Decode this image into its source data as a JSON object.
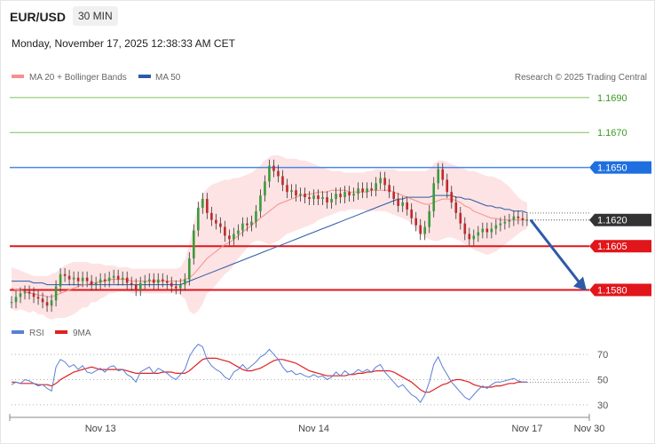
{
  "header": {
    "symbol": "EUR/USD",
    "timeframe": "30 MIN",
    "timestamp": "Monday, November 17, 2025 12:38:33 AM CET"
  },
  "legend": {
    "ma20_label": "MA 20 + Bollinger Bands",
    "ma50_label": "MA 50",
    "credit": "Research © 2025 Trading Central",
    "rsi_label": "RSI",
    "rsi_ma_label": "9MA"
  },
  "colors": {
    "ma20": "#f4908e",
    "ma50": "#2e5aa8",
    "band_fill": "#fde3e3",
    "up": "#3a9b3a",
    "down": "#c0282b",
    "resistance_line": "#4a86e8",
    "support_line": "#e0161b",
    "target_line": "#7fbf5a",
    "last_price": "#333333",
    "rsi": "#5b7fd6",
    "rsi_ma": "#e02020",
    "arrow": "#2e5aa8"
  },
  "chart_data": [
    {
      "type": "candlestick",
      "title": "",
      "y_ticks": [
        {
          "value": 1.169,
          "label": "1.1690",
          "style": "target"
        },
        {
          "value": 1.167,
          "label": "1.1670",
          "style": "target"
        },
        {
          "value": 1.165,
          "label": "1.1650",
          "style": "resistance"
        },
        {
          "value": 1.162,
          "label": "1.1620",
          "style": "last"
        },
        {
          "value": 1.1605,
          "label": "1.1605",
          "style": "support"
        },
        {
          "value": 1.158,
          "label": "1.1580",
          "style": "support"
        }
      ],
      "ylim": [
        1.1565,
        1.1695
      ],
      "x_ticks": [
        {
          "index": 20,
          "label": "Nov 13"
        },
        {
          "index": 68,
          "label": "Nov 14"
        },
        {
          "index": 116,
          "label": "Nov 17"
        },
        {
          "index": 130,
          "label": "Nov 30"
        }
      ],
      "x_count": 131,
      "last_index": 116,
      "forecast": {
        "from_index": 116,
        "from_value": 1.162,
        "to_index": 130,
        "to_value": 1.158
      },
      "closes": [
        1.1573,
        1.1576,
        1.1578,
        1.1579,
        1.1578,
        1.1576,
        1.1575,
        1.1573,
        1.1571,
        1.1574,
        1.1582,
        1.1589,
        1.1588,
        1.1586,
        1.1587,
        1.1585,
        1.1587,
        1.1585,
        1.1583,
        1.1584,
        1.1586,
        1.1585,
        1.1587,
        1.1588,
        1.1586,
        1.1587,
        1.1584,
        1.1583,
        1.158,
        1.1584,
        1.1585,
        1.1586,
        1.1584,
        1.1586,
        1.1585,
        1.1584,
        1.1582,
        1.1581,
        1.1583,
        1.1586,
        1.1598,
        1.1614,
        1.1627,
        1.1632,
        1.1624,
        1.162,
        1.1618,
        1.1616,
        1.1611,
        1.1609,
        1.1612,
        1.1614,
        1.1618,
        1.1617,
        1.1619,
        1.1625,
        1.1634,
        1.1642,
        1.1651,
        1.1648,
        1.1645,
        1.164,
        1.1636,
        1.1637,
        1.1634,
        1.1635,
        1.1633,
        1.1632,
        1.1634,
        1.1632,
        1.1633,
        1.163,
        1.1632,
        1.1635,
        1.1633,
        1.1636,
        1.1634,
        1.1635,
        1.1638,
        1.1636,
        1.1638,
        1.1637,
        1.1641,
        1.1644,
        1.164,
        1.1636,
        1.1632,
        1.1628,
        1.163,
        1.1626,
        1.1621,
        1.1617,
        1.1612,
        1.1616,
        1.1625,
        1.1641,
        1.1649,
        1.1643,
        1.1636,
        1.163,
        1.1624,
        1.1618,
        1.1612,
        1.1609,
        1.1611,
        1.1613,
        1.1615,
        1.1613,
        1.1615,
        1.1617,
        1.1618,
        1.1619,
        1.162,
        1.1622,
        1.1621,
        1.162,
        1.162
      ],
      "ma20": [
        1.1581,
        1.158,
        1.158,
        1.1579,
        1.1578,
        1.1578,
        1.1577,
        1.1577,
        1.1576,
        1.1576,
        1.1577,
        1.1578,
        1.1579,
        1.158,
        1.1581,
        1.1582,
        1.1583,
        1.1583,
        1.1584,
        1.1584,
        1.1585,
        1.1585,
        1.1586,
        1.1586,
        1.1586,
        1.1586,
        1.1586,
        1.1585,
        1.1585,
        1.1585,
        1.1585,
        1.1585,
        1.1585,
        1.1585,
        1.1585,
        1.1585,
        1.1585,
        1.1585,
        1.1585,
        1.1586,
        1.1587,
        1.1589,
        1.1592,
        1.1595,
        1.1598,
        1.16,
        1.1602,
        1.1604,
        1.1606,
        1.1607,
        1.1609,
        1.1611,
        1.1613,
        1.1615,
        1.1617,
        1.1619,
        1.1621,
        1.1623,
        1.1625,
        1.1627,
        1.1629,
        1.163,
        1.1631,
        1.1632,
        1.1633,
        1.1634,
        1.1634,
        1.1635,
        1.1635,
        1.1636,
        1.1636,
        1.1636,
        1.1637,
        1.1637,
        1.1637,
        1.1637,
        1.1636,
        1.1636,
        1.1636,
        1.1636,
        1.1636,
        1.1637,
        1.1637,
        1.1637,
        1.1637,
        1.1637,
        1.1636,
        1.1635,
        1.1634,
        1.1633,
        1.1632,
        1.1631,
        1.163,
        1.1629,
        1.1629,
        1.163,
        1.1631,
        1.1632,
        1.1632,
        1.1632,
        1.1631,
        1.163,
        1.1628,
        1.1627,
        1.1625,
        1.1624,
        1.1623,
        1.1622,
        1.1621,
        1.1621,
        1.162,
        1.162,
        1.162,
        1.162,
        1.162,
        1.162,
        1.162
      ],
      "ma50": [
        1.1585,
        1.1585,
        1.1585,
        1.1585,
        1.1585,
        1.1584,
        1.1584,
        1.1584,
        1.1583,
        1.1583,
        1.1583,
        1.1583,
        1.1583,
        1.1583,
        1.1583,
        1.1583,
        1.1583,
        1.1583,
        1.1583,
        1.1583,
        1.1583,
        1.1583,
        1.1583,
        1.1583,
        1.1583,
        1.1583,
        1.1583,
        1.1583,
        1.1583,
        1.1583,
        1.1583,
        1.1583,
        1.1583,
        1.1583,
        1.1583,
        1.1583,
        1.1583,
        1.1583,
        1.1583,
        1.1584,
        1.1585,
        1.1586,
        1.1587,
        1.1588,
        1.1589,
        1.159,
        1.1591,
        1.1592,
        1.1593,
        1.1594,
        1.1595,
        1.1596,
        1.1597,
        1.1598,
        1.1599,
        1.16,
        1.1601,
        1.1602,
        1.1603,
        1.1604,
        1.1605,
        1.1606,
        1.1607,
        1.1608,
        1.1609,
        1.161,
        1.1611,
        1.1612,
        1.1613,
        1.1614,
        1.1615,
        1.1616,
        1.1617,
        1.1618,
        1.1619,
        1.162,
        1.1621,
        1.1622,
        1.1623,
        1.1624,
        1.1625,
        1.1626,
        1.1627,
        1.1628,
        1.1629,
        1.163,
        1.1631,
        1.1632,
        1.1632,
        1.1633,
        1.1633,
        1.1633,
        1.1633,
        1.1633,
        1.1633,
        1.1634,
        1.1634,
        1.1634,
        1.1634,
        1.1634,
        1.1633,
        1.1633,
        1.1632,
        1.1632,
        1.1631,
        1.163,
        1.1629,
        1.1628,
        1.1628,
        1.1627,
        1.1627,
        1.1626,
        1.1626,
        1.1625,
        1.1625,
        1.1625,
        1.1624
      ],
      "band_upper": [
        1.1593,
        1.1592,
        1.1591,
        1.159,
        1.1589,
        1.1588,
        1.1588,
        1.1588,
        1.1588,
        1.1589,
        1.159,
        1.1592,
        1.1594,
        1.1595,
        1.1596,
        1.1596,
        1.1596,
        1.1596,
        1.1595,
        1.1595,
        1.1595,
        1.1594,
        1.1594,
        1.1594,
        1.1593,
        1.1593,
        1.1593,
        1.1592,
        1.1592,
        1.1592,
        1.1592,
        1.1592,
        1.1592,
        1.1592,
        1.1592,
        1.1592,
        1.1592,
        1.1592,
        1.1593,
        1.1597,
        1.1606,
        1.1618,
        1.1628,
        1.1635,
        1.1638,
        1.164,
        1.1641,
        1.1642,
        1.1643,
        1.1643,
        1.1644,
        1.1644,
        1.1645,
        1.1646,
        1.1647,
        1.1649,
        1.1651,
        1.1654,
        1.1656,
        1.1657,
        1.1657,
        1.1656,
        1.1655,
        1.1655,
        1.1655,
        1.1654,
        1.1654,
        1.1653,
        1.1652,
        1.1651,
        1.165,
        1.1649,
        1.1648,
        1.1648,
        1.1648,
        1.1647,
        1.1647,
        1.1647,
        1.1647,
        1.1647,
        1.1648,
        1.1648,
        1.1649,
        1.1649,
        1.1649,
        1.1649,
        1.1649,
        1.1648,
        1.1648,
        1.1648,
        1.1648,
        1.1648,
        1.1648,
        1.1648,
        1.1649,
        1.1652,
        1.1654,
        1.1654,
        1.1653,
        1.1652,
        1.1651,
        1.165,
        1.1649,
        1.1648,
        1.1648,
        1.1647,
        1.1646,
        1.1645,
        1.1645,
        1.1644,
        1.1643,
        1.1641,
        1.1639,
        1.1636,
        1.1633,
        1.1631,
        1.163
      ],
      "band_lower": [
        1.1569,
        1.1568,
        1.1569,
        1.1568,
        1.1567,
        1.1568,
        1.1566,
        1.1566,
        1.1564,
        1.1563,
        1.1564,
        1.1564,
        1.1564,
        1.1565,
        1.1566,
        1.1568,
        1.157,
        1.157,
        1.1573,
        1.1573,
        1.1575,
        1.1576,
        1.1578,
        1.1578,
        1.1579,
        1.1579,
        1.1579,
        1.1578,
        1.1578,
        1.1578,
        1.1578,
        1.1578,
        1.1578,
        1.1578,
        1.1578,
        1.1578,
        1.1578,
        1.1578,
        1.1577,
        1.1575,
        1.1568,
        1.1566,
        1.1568,
        1.1572,
        1.1578,
        1.158,
        1.1583,
        1.1586,
        1.1589,
        1.1591,
        1.1594,
        1.1598,
        1.1601,
        1.1604,
        1.1607,
        1.1608,
        1.1608,
        1.1607,
        1.1606,
        1.1607,
        1.1608,
        1.161,
        1.1612,
        1.1613,
        1.1614,
        1.1615,
        1.1616,
        1.1617,
        1.1618,
        1.162,
        1.1621,
        1.1622,
        1.1623,
        1.1624,
        1.1625,
        1.1625,
        1.1626,
        1.1626,
        1.1626,
        1.1626,
        1.1625,
        1.1625,
        1.1625,
        1.1625,
        1.1625,
        1.1624,
        1.1623,
        1.1622,
        1.1621,
        1.162,
        1.1618,
        1.1615,
        1.1612,
        1.161,
        1.1609,
        1.1608,
        1.1608,
        1.1609,
        1.161,
        1.161,
        1.1609,
        1.1608,
        1.1606,
        1.1605,
        1.1603,
        1.1602,
        1.1601,
        1.16,
        1.1601,
        1.1602,
        1.1604,
        1.1606,
        1.1608,
        1.161,
        1.1612,
        1.1614,
        1.1615
      ]
    },
    {
      "type": "line",
      "title": "",
      "y_ticks": [
        70,
        50,
        30
      ],
      "ylim": [
        25,
        75
      ],
      "series": [
        {
          "name": "RSI",
          "values": [
            46,
            48,
            47,
            50,
            49,
            47,
            45,
            46,
            43,
            41,
            60,
            66,
            64,
            60,
            62,
            58,
            61,
            56,
            55,
            57,
            59,
            56,
            60,
            61,
            57,
            58,
            54,
            52,
            48,
            56,
            58,
            60,
            55,
            59,
            57,
            55,
            52,
            50,
            54,
            58,
            68,
            74,
            78,
            76,
            66,
            61,
            58,
            56,
            52,
            50,
            56,
            58,
            62,
            58,
            61,
            64,
            68,
            70,
            74,
            70,
            66,
            60,
            56,
            57,
            54,
            55,
            53,
            52,
            54,
            52,
            53,
            50,
            52,
            56,
            53,
            57,
            54,
            55,
            58,
            56,
            58,
            56,
            60,
            62,
            56,
            52,
            48,
            44,
            46,
            42,
            38,
            36,
            32,
            38,
            48,
            62,
            68,
            60,
            54,
            48,
            44,
            40,
            36,
            34,
            38,
            42,
            45,
            43,
            46,
            48,
            48,
            49,
            50,
            51,
            49,
            48,
            48
          ]
        },
        {
          "name": "9MA",
          "values": [
            48,
            48,
            47,
            47,
            47,
            47,
            46,
            46,
            46,
            45,
            47,
            50,
            52,
            54,
            56,
            57,
            58,
            59,
            60,
            59,
            58,
            58,
            58,
            58,
            58,
            58,
            57,
            56,
            55,
            55,
            55,
            55,
            55,
            55,
            56,
            56,
            56,
            55,
            55,
            55,
            57,
            60,
            63,
            66,
            67,
            67,
            67,
            66,
            65,
            64,
            62,
            60,
            58,
            57,
            57,
            58,
            59,
            61,
            63,
            65,
            66,
            66,
            65,
            64,
            63,
            61,
            59,
            57,
            56,
            55,
            54,
            53,
            53,
            53,
            53,
            53,
            54,
            54,
            55,
            55,
            56,
            56,
            57,
            57,
            57,
            57,
            56,
            54,
            52,
            50,
            48,
            45,
            42,
            40,
            40,
            42,
            44,
            46,
            47,
            49,
            50,
            50,
            49,
            48,
            46,
            45,
            44,
            44,
            44,
            45,
            45,
            46,
            47,
            47,
            48,
            48,
            48
          ]
        }
      ]
    }
  ]
}
